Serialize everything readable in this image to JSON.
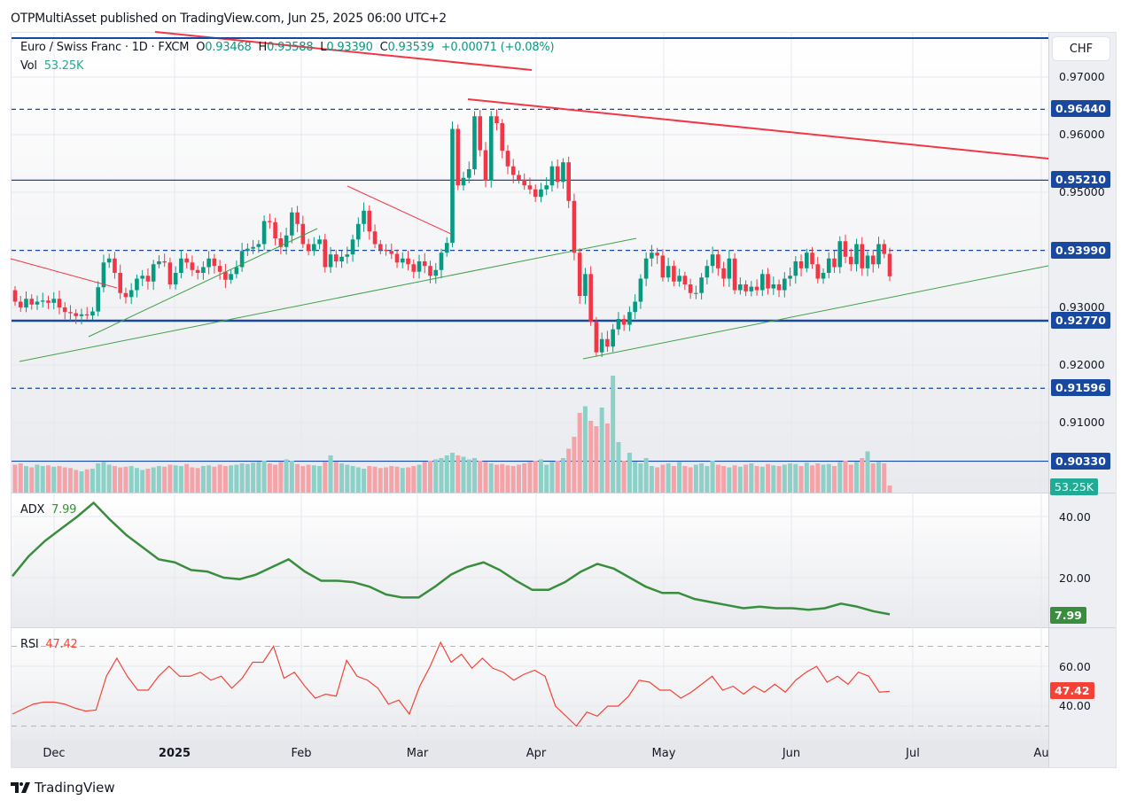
{
  "publisher_line": "OTPMultiAsset published on TradingView.com, Jun 25, 2025 06:00 UTC+2",
  "legend": {
    "symbol": "Euro / Swiss Franc · 1D · FXCM",
    "o_label": "O",
    "o": "0.93468",
    "h_label": "H",
    "h": "0.93588",
    "l_label": "L",
    "l": "0.93390",
    "c_label": "C",
    "c": "0.93539",
    "change": "+0.00071 (+0.08%)",
    "vol_label": "Vol",
    "vol": "53.25K"
  },
  "price_axis": {
    "currency": "CHF",
    "ticks": [
      "0.97000",
      "0.96000",
      "0.95000",
      "0.93000",
      "0.92000",
      "0.91000"
    ],
    "levels": [
      {
        "label": "0.96440",
        "style": "dashed"
      },
      {
        "label": "0.95210",
        "style": "solid"
      },
      {
        "label": "0.93990",
        "style": "dashed"
      },
      {
        "label": "0.92770",
        "style": "solid-thick"
      },
      {
        "label": "0.91596",
        "style": "dashed"
      },
      {
        "label": "0.90330",
        "style": "solid"
      }
    ],
    "volume_badge": "53.25K"
  },
  "adx": {
    "label": "ADX",
    "value": "7.99",
    "ticks": [
      "40.00",
      "20.00"
    ],
    "badge": "7.99"
  },
  "rsi": {
    "label": "RSI",
    "value": "47.42",
    "ticks": [
      "60.00",
      "40.00"
    ],
    "badge": "47.42"
  },
  "time_axis": [
    "Dec",
    "2025",
    "Feb",
    "Mar",
    "Apr",
    "May",
    "Jun",
    "Jul",
    "Au"
  ],
  "logo_text": "TradingView",
  "colors": {
    "up": "#089981",
    "down": "#f23645",
    "level": "#1848a0",
    "adx": "#388e3c",
    "rsi": "#f44336",
    "volume_badge": "#22ab94"
  },
  "chart_data": {
    "type": "candlestick",
    "ylim": [
      0.897,
      0.975
    ],
    "first_open": 0.933,
    "closes": [
      0.931,
      0.93,
      0.9315,
      0.9305,
      0.931,
      0.9312,
      0.9308,
      0.9315,
      0.93,
      0.9292,
      0.929,
      0.9285,
      0.9288,
      0.9286,
      0.9293,
      0.9335,
      0.9378,
      0.9385,
      0.936,
      0.9325,
      0.9318,
      0.933,
      0.935,
      0.9355,
      0.9345,
      0.9375,
      0.938,
      0.9378,
      0.934,
      0.936,
      0.9385,
      0.9378,
      0.9365,
      0.936,
      0.937,
      0.9385,
      0.9372,
      0.9362,
      0.9348,
      0.9358,
      0.937,
      0.9398,
      0.9402,
      0.9405,
      0.941,
      0.945,
      0.9448,
      0.942,
      0.9405,
      0.9425,
      0.9465,
      0.9445,
      0.941,
      0.9398,
      0.941,
      0.9418,
      0.937,
      0.9392,
      0.938,
      0.9388,
      0.9392,
      0.9418,
      0.9445,
      0.9468,
      0.9432,
      0.941,
      0.94,
      0.9398,
      0.9393,
      0.9378,
      0.9385,
      0.9375,
      0.9362,
      0.938,
      0.9372,
      0.9355,
      0.9365,
      0.9395,
      0.9412,
      0.961,
      0.9512,
      0.9525,
      0.954,
      0.9632,
      0.9573,
      0.952,
      0.9632,
      0.962,
      0.9572,
      0.9545,
      0.953,
      0.9522,
      0.9512,
      0.9505,
      0.9492,
      0.9505,
      0.9512,
      0.9545,
      0.9518,
      0.9552,
      0.9485,
      0.9395,
      0.932,
      0.9358,
      0.9275,
      0.9222,
      0.9245,
      0.9232,
      0.9262,
      0.928,
      0.927,
      0.9292,
      0.931,
      0.935,
      0.9385,
      0.9395,
      0.939,
      0.9352,
      0.9372,
      0.9345,
      0.9355,
      0.934,
      0.9325,
      0.9325,
      0.9352,
      0.9372,
      0.9392,
      0.9368,
      0.935,
      0.9385,
      0.933,
      0.934,
      0.9328,
      0.9336,
      0.933,
      0.9358,
      0.9333,
      0.934,
      0.933,
      0.935,
      0.9355,
      0.938,
      0.9368,
      0.9395,
      0.9375,
      0.935,
      0.936,
      0.9385,
      0.937,
      0.9415,
      0.9388,
      0.9375,
      0.941,
      0.9368,
      0.939,
      0.9375,
      0.941,
      0.9393,
      0.9354
    ],
    "volume_k": [
      210,
      220,
      200,
      190,
      210,
      200,
      205,
      195,
      200,
      190,
      185,
      170,
      160,
      175,
      180,
      220,
      230,
      210,
      200,
      190,
      195,
      200,
      185,
      170,
      180,
      190,
      200,
      195,
      210,
      205,
      200,
      215,
      190,
      185,
      200,
      205,
      195,
      210,
      200,
      205,
      210,
      220,
      215,
      225,
      230,
      240,
      220,
      210,
      230,
      250,
      240,
      215,
      200,
      210,
      205,
      200,
      230,
      280,
      230,
      220,
      210,
      200,
      190,
      180,
      200,
      195,
      185,
      190,
      200,
      195,
      185,
      190,
      200,
      210,
      230,
      240,
      250,
      260,
      280,
      300,
      280,
      270,
      250,
      260,
      240,
      230,
      220,
      210,
      215,
      205,
      200,
      210,
      220,
      230,
      240,
      250,
      210,
      230,
      240,
      260,
      330,
      420,
      600,
      650,
      540,
      500,
      640,
      520,
      880,
      380,
      240,
      300,
      230,
      220,
      260,
      200,
      190,
      210,
      220,
      200,
      230,
      200,
      190,
      210,
      220,
      200,
      240,
      210,
      200,
      190,
      205,
      195,
      210,
      220,
      200,
      195,
      215,
      205,
      200,
      210,
      220,
      215,
      200,
      225,
      205,
      220,
      210,
      215,
      200,
      230,
      240,
      210,
      230,
      260,
      310,
      220,
      230,
      220,
      53.25
    ],
    "adx_values": [
      20.5,
      27,
      32,
      36,
      40,
      44.5,
      39,
      34,
      30,
      26,
      25,
      22.5,
      22,
      20,
      19.5,
      21,
      23.5,
      26,
      22,
      19,
      19,
      18.5,
      17,
      14.5,
      13.5,
      13.5,
      17,
      21,
      23.5,
      25,
      22.5,
      19,
      16,
      16,
      18.5,
      22,
      24.5,
      23,
      20,
      17,
      15,
      15,
      13,
      12,
      11,
      10,
      10.5,
      10,
      10,
      9.5,
      10,
      11.5,
      10.5,
      9,
      8
    ],
    "rsi_values": [
      36,
      38.5,
      41,
      42,
      42,
      41,
      39,
      37.5,
      38,
      55,
      64,
      55,
      48,
      48,
      55,
      60,
      55,
      55,
      57,
      53,
      55,
      49,
      54,
      62,
      62,
      70,
      54,
      57,
      50,
      44,
      46,
      45,
      63,
      55,
      53,
      49,
      41,
      43,
      36,
      50,
      60,
      72,
      62,
      66,
      59,
      64,
      59,
      57,
      53,
      56,
      58,
      55,
      40,
      35,
      30,
      37,
      35,
      40,
      40,
      45,
      53,
      52,
      48,
      48,
      44,
      47,
      51,
      55,
      48,
      50,
      46,
      50,
      47,
      51,
      47,
      53,
      57,
      60,
      52,
      55,
      51,
      57,
      55,
      47,
      47.42
    ],
    "rsi_bands": [
      70,
      30
    ]
  }
}
